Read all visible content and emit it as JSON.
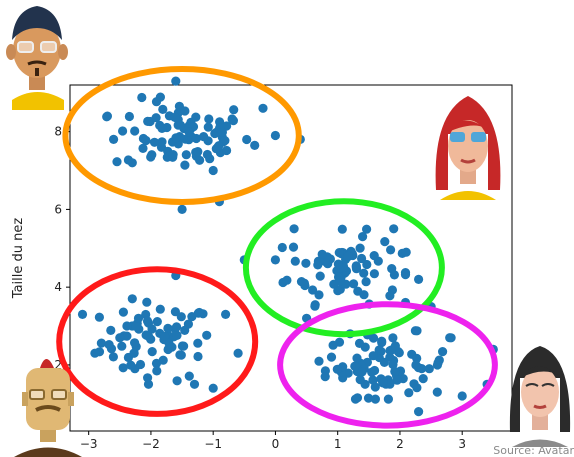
{
  "chart_data": {
    "type": "scatter",
    "title": "",
    "xlabel": "",
    "ylabel": "Taille du nez",
    "xlim": [
      -3.3,
      3.8
    ],
    "ylim": [
      0.3,
      9.2
    ],
    "xticks": [
      -3,
      -2,
      -1,
      0,
      1,
      2,
      3
    ],
    "yticks": [
      2,
      4,
      6,
      8
    ],
    "grid": false,
    "point_color": "#1f77b4",
    "clusters": [
      {
        "center": [
          -1.9,
          2.6
        ],
        "outline_color": "#ff1a1a",
        "n": 70,
        "spread": [
          0.45,
          0.5
        ],
        "points": [
          [
            -3.1,
            3.3
          ],
          [
            -2.9,
            2.3
          ],
          [
            -2.5,
            2.7
          ],
          [
            -2.2,
            3.2
          ],
          [
            -1.3,
            1.5
          ],
          [
            -1.0,
            1.4
          ],
          [
            -0.8,
            3.3
          ],
          [
            -0.5,
            4.7
          ],
          [
            -1.6,
            4.3
          ],
          [
            -2.3,
            3.7
          ],
          [
            -0.6,
            2.3
          ]
        ]
      },
      {
        "center": [
          -1.5,
          7.9
        ],
        "outline_color": "#ff9900",
        "n": 85,
        "spread": [
          0.55,
          0.45
        ],
        "points": [
          [
            -2.7,
            8.4
          ],
          [
            -2.6,
            7.8
          ],
          [
            -1.5,
            6.0
          ],
          [
            -0.9,
            6.2
          ],
          [
            0.4,
            7.8
          ],
          [
            -0.2,
            8.6
          ],
          [
            -1.6,
            9.3
          ],
          [
            -2.3,
            7.2
          ],
          [
            -1.0,
            7.0
          ],
          [
            0.0,
            7.9
          ]
        ]
      },
      {
        "center": [
          1.1,
          4.5
        ],
        "outline_color": "#22ee22",
        "n": 75,
        "spread": [
          0.45,
          0.45
        ],
        "points": [
          [
            0.0,
            4.7
          ],
          [
            0.3,
            5.5
          ],
          [
            0.5,
            3.2
          ],
          [
            1.9,
            5.5
          ],
          [
            2.1,
            4.9
          ],
          [
            2.5,
            3.5
          ],
          [
            2.3,
            4.2
          ],
          [
            0.7,
            3.8
          ],
          [
            1.4,
            5.3
          ]
        ]
      },
      {
        "center": [
          1.8,
          2.0
        ],
        "outline_color": "#ee22ee",
        "n": 75,
        "spread": [
          0.5,
          0.4
        ],
        "points": [
          [
            0.9,
            2.2
          ],
          [
            2.3,
            0.8
          ],
          [
            3.0,
            1.2
          ],
          [
            3.4,
            1.5
          ],
          [
            0.8,
            1.7
          ],
          [
            2.8,
            2.7
          ],
          [
            1.2,
            2.8
          ],
          [
            3.5,
            2.4
          ],
          [
            2.6,
            1.3
          ]
        ]
      }
    ]
  },
  "source_text": "Source: Avatar",
  "avatars": [
    {
      "name": "avatar-man-glasses-icon"
    },
    {
      "name": "avatar-woman-redhair-icon"
    },
    {
      "name": "avatar-man-mohawk-icon"
    },
    {
      "name": "avatar-woman-darkhair-icon"
    }
  ]
}
